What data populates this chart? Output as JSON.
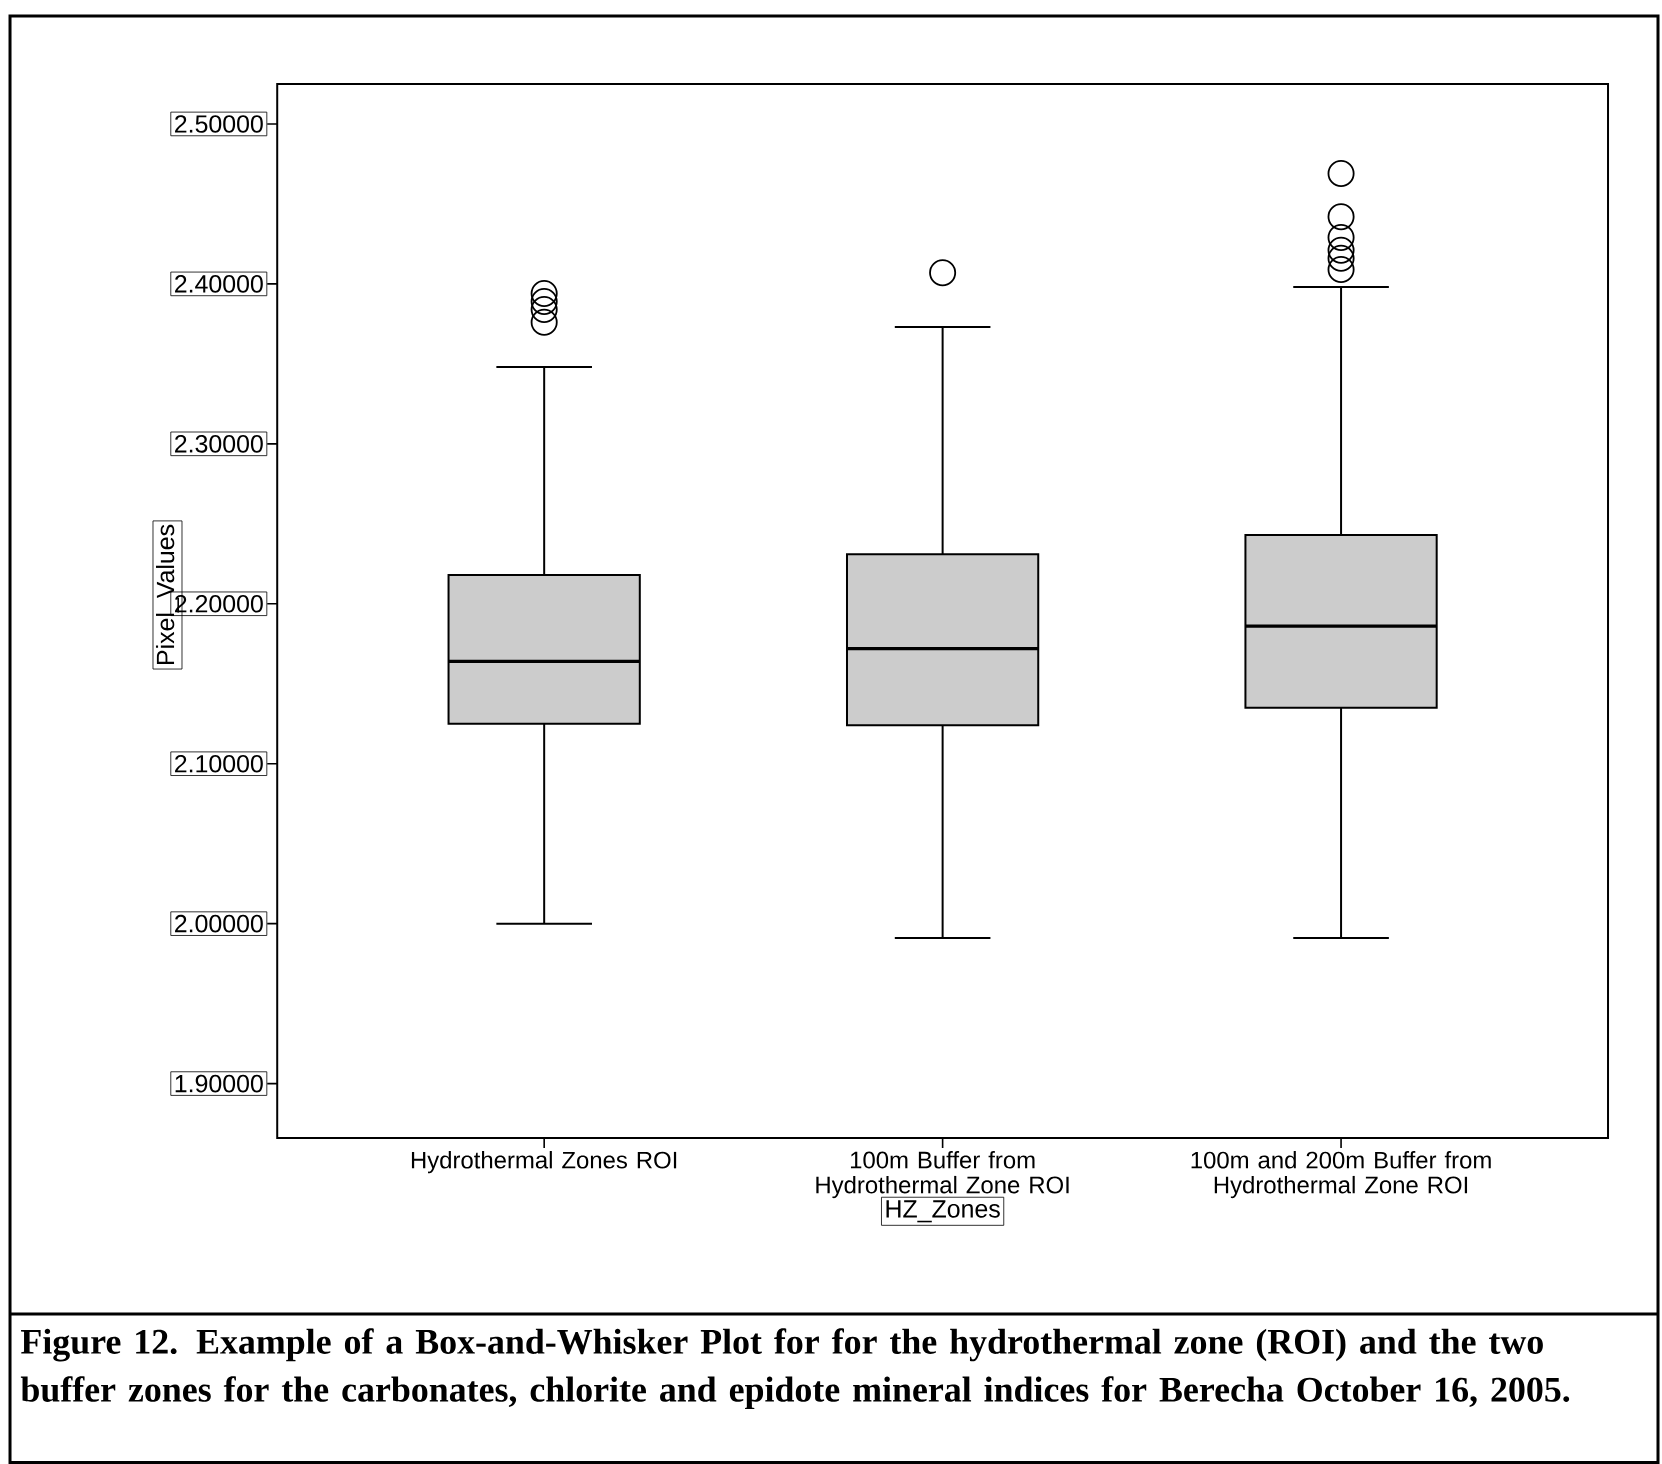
{
  "chart_data": {
    "type": "box",
    "xlabel": "HZ_Zones",
    "ylabel": "Pixel_Values",
    "categories": [
      "Hydrothermal Zones ROI",
      "100m Buffer from Hydrothermal Zone ROI",
      "100m and 200m Buffer from Hydrothermal Zone ROI"
    ],
    "series": [
      {
        "color": "#cccccc",
        "boxes": [
          {
            "low": 2.0,
            "q1": 2.125,
            "median": 2.164,
            "q3": 2.218,
            "high": 2.348,
            "outliers": [
              2.394,
              2.389,
              2.384,
              2.376
            ]
          },
          {
            "low": 1.991,
            "q1": 2.124,
            "median": 2.172,
            "q3": 2.231,
            "high": 2.373,
            "outliers": [
              2.407
            ]
          },
          {
            "low": 1.991,
            "q1": 2.135,
            "median": 2.186,
            "q3": 2.243,
            "high": 2.398,
            "outliers": [
              2.469,
              2.442,
              2.429,
              2.421,
              2.416,
              2.409
            ]
          }
        ]
      }
    ],
    "marker": "circle",
    "ylim": [
      1.866,
      2.525
    ],
    "yticks": [
      {
        "value": 1.9,
        "label": "1.90000"
      },
      {
        "value": 2.0,
        "label": "2.00000"
      },
      {
        "value": 2.1,
        "label": "2.10000"
      },
      {
        "value": 2.2,
        "label": "2.20000"
      },
      {
        "value": 2.3,
        "label": "2.30000"
      },
      {
        "value": 2.4,
        "label": "2.40000"
      },
      {
        "value": 2.5,
        "label": "2.50000"
      }
    ],
    "grid": false,
    "annotations": [
      "**Figure 12. Example of a Box-and-Whisker Plot for for the hydrothermal zone (ROI) and the two buffer zones for the carbonates, chlorite and epidote mineral indices for Berecha October 16, 2005.**"
    ]
  }
}
